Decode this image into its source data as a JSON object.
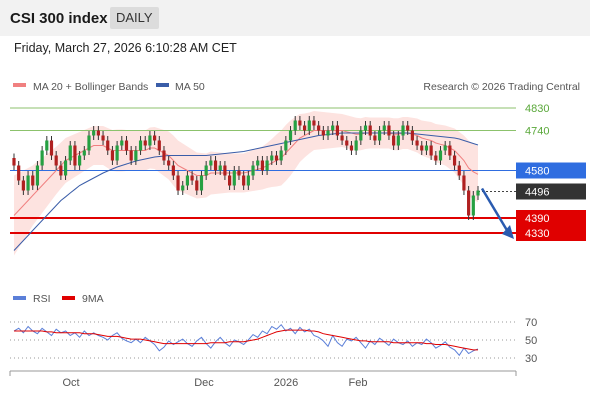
{
  "header": {
    "title": "CSI 300 index",
    "period": "DAILY"
  },
  "datetime": "Friday, March 27, 2026 6:10:28 AM CET",
  "legend": {
    "ma20": "MA 20 + Bollinger Bands",
    "ma50": "MA 50",
    "rsi": "RSI",
    "ma9": "9MA"
  },
  "source": "Research © 2026 Trading Central",
  "colors": {
    "up": "#26a042",
    "down": "#b02020",
    "ma20": "#f08080",
    "band": "#fde3e0",
    "ma50": "#3a5da8",
    "support": "#e00000",
    "pivot": "#2f6de0",
    "last": "#333333",
    "resistance": "#8cc26c",
    "rsi": "#5b7fd8",
    "ma9": "#e00000",
    "arrow": "#2a5bb0"
  },
  "chart_data": {
    "type": "candlestick",
    "y_range": [
      4240,
      4880
    ],
    "x_labels": [
      "Oct",
      "Dec",
      "2026",
      "Feb"
    ],
    "levels": [
      {
        "value": 4830,
        "label": "4830",
        "kind": "resistance"
      },
      {
        "value": 4740,
        "label": "4740",
        "kind": "resistance"
      },
      {
        "value": 4580,
        "label": "4580",
        "kind": "pivot"
      },
      {
        "value": 4496,
        "label": "4496",
        "kind": "last"
      },
      {
        "value": 4390,
        "label": "4390",
        "kind": "support"
      },
      {
        "value": 4330,
        "label": "4330",
        "kind": "support"
      }
    ],
    "close": [
      4600,
      4540,
      4500,
      4560,
      4520,
      4600,
      4660,
      4700,
      4640,
      4600,
      4560,
      4620,
      4680,
      4600,
      4640,
      4660,
      4720,
      4740,
      4720,
      4700,
      4660,
      4620,
      4680,
      4700,
      4660,
      4620,
      4660,
      4700,
      4680,
      4720,
      4700,
      4660,
      4620,
      4600,
      4560,
      4500,
      4520,
      4560,
      4540,
      4500,
      4560,
      4600,
      4620,
      4580,
      4600,
      4560,
      4520,
      4580,
      4560,
      4520,
      4560,
      4600,
      4620,
      4580,
      4620,
      4640,
      4620,
      4660,
      4700,
      4740,
      4780,
      4760,
      4740,
      4780,
      4760,
      4740,
      4720,
      4740,
      4760,
      4720,
      4700,
      4680,
      4660,
      4700,
      4740,
      4760,
      4720,
      4700,
      4740,
      4760,
      4720,
      4680,
      4720,
      4760,
      4740,
      4700,
      4680,
      4660,
      4680,
      4640,
      4620,
      4660,
      4680,
      4640,
      4600,
      4560,
      4500,
      4400,
      4480,
      4500
    ],
    "ma20": [
      4400,
      4420,
      4440,
      4460,
      4480,
      4500,
      4520,
      4540,
      4560,
      4580,
      4600,
      4620,
      4630,
      4640,
      4650,
      4660,
      4670,
      4680,
      4680,
      4680,
      4670,
      4660,
      4660,
      4660,
      4660,
      4660,
      4660,
      4660,
      4660,
      4670,
      4670,
      4660,
      4650,
      4640,
      4620,
      4600,
      4590,
      4580,
      4570,
      4560,
      4560,
      4560,
      4570,
      4570,
      4570,
      4570,
      4570,
      4570,
      4570,
      4570,
      4575,
      4580,
      4585,
      4590,
      4600,
      4610,
      4620,
      4630,
      4650,
      4670,
      4690,
      4710,
      4720,
      4730,
      4740,
      4740,
      4740,
      4740,
      4740,
      4740,
      4740,
      4735,
      4730,
      4725,
      4725,
      4730,
      4730,
      4730,
      4730,
      4730,
      4730,
      4725,
      4725,
      4730,
      4730,
      4725,
      4720,
      4710,
      4705,
      4700,
      4690,
      4685,
      4680,
      4670,
      4660,
      4640,
      4620,
      4590,
      4575,
      4565
    ],
    "ma50": [
      4260,
      4280,
      4300,
      4320,
      4340,
      4360,
      4380,
      4400,
      4420,
      4440,
      4460,
      4475,
      4490,
      4505,
      4520,
      4530,
      4540,
      4550,
      4560,
      4570,
      4578,
      4586,
      4594,
      4600,
      4606,
      4612,
      4618,
      4622,
      4626,
      4630,
      4634,
      4636,
      4638,
      4640,
      4640,
      4640,
      4640,
      4640,
      4640,
      4640,
      4640,
      4640,
      4642,
      4644,
      4646,
      4648,
      4650,
      4652,
      4654,
      4656,
      4660,
      4664,
      4668,
      4672,
      4676,
      4680,
      4684,
      4688,
      4692,
      4696,
      4700,
      4704,
      4708,
      4712,
      4716,
      4720,
      4722,
      4724,
      4726,
      4728,
      4730,
      4730,
      4730,
      4730,
      4730,
      4730,
      4730,
      4730,
      4730,
      4730,
      4730,
      4730,
      4730,
      4730,
      4730,
      4728,
      4726,
      4724,
      4722,
      4720,
      4718,
      4716,
      4714,
      4712,
      4710,
      4706,
      4700,
      4694,
      4688,
      4682
    ],
    "band_width": [
      160,
      150,
      140,
      130,
      120,
      115,
      110,
      105,
      100,
      95,
      92,
      90,
      88,
      86,
      84,
      82,
      80,
      78,
      78,
      78,
      80,
      82,
      84,
      84,
      82,
      80,
      80,
      80,
      80,
      82,
      84,
      88,
      92,
      96,
      100,
      100,
      98,
      96,
      94,
      92,
      90,
      88,
      86,
      84,
      82,
      80,
      78,
      78,
      78,
      78,
      80,
      82,
      84,
      86,
      90,
      96,
      104,
      110,
      112,
      110,
      104,
      96,
      88,
      82,
      78,
      76,
      74,
      72,
      70,
      68,
      66,
      66,
      66,
      66,
      64,
      64,
      62,
      62,
      62,
      62,
      62,
      64,
      64,
      64,
      64,
      66,
      68,
      70,
      72,
      74,
      76,
      78,
      80,
      84,
      88,
      94,
      100,
      110,
      112,
      112
    ],
    "rsi_levels": [
      70,
      50,
      30
    ],
    "rsi": [
      60,
      63,
      58,
      65,
      60,
      57,
      63,
      59,
      55,
      62,
      58,
      60,
      55,
      58,
      53,
      60,
      55,
      58,
      55,
      53,
      50,
      55,
      58,
      52,
      49,
      47,
      51,
      47,
      53,
      49,
      45,
      38,
      42,
      49,
      45,
      48,
      51,
      46,
      43,
      49,
      53,
      46,
      41,
      48,
      53,
      47,
      43,
      50,
      48,
      45,
      50,
      56,
      53,
      60,
      57,
      65,
      62,
      67,
      60,
      63,
      57,
      64,
      59,
      62,
      55,
      53,
      49,
      43,
      55,
      47,
      43,
      51,
      49,
      53,
      47,
      41,
      49,
      45,
      52,
      48,
      44,
      51,
      47,
      45,
      49,
      43,
      47,
      45,
      51,
      47,
      41,
      44,
      48,
      42,
      39,
      33,
      41,
      35,
      38,
      40
    ],
    "ma9": [
      60,
      60,
      60,
      60,
      60,
      60,
      60,
      59,
      59,
      58,
      58,
      58,
      58,
      58,
      58,
      57,
      57,
      57,
      56,
      55,
      54,
      54,
      54,
      53,
      52,
      51,
      51,
      51,
      50,
      49,
      48,
      47,
      46,
      46,
      46,
      46,
      46,
      46,
      46,
      46,
      46,
      46,
      47,
      47,
      47,
      47,
      48,
      48,
      48,
      48,
      49,
      50,
      51,
      53,
      55,
      57,
      59,
      60,
      61,
      61,
      61,
      61,
      61,
      60,
      60,
      59,
      57,
      56,
      55,
      54,
      53,
      52,
      51,
      50,
      49,
      49,
      48,
      48,
      48,
      48,
      48,
      47,
      47,
      47,
      47,
      47,
      47,
      47,
      46,
      46,
      45,
      45,
      45,
      44,
      43,
      42,
      41,
      40,
      39,
      39
    ]
  }
}
